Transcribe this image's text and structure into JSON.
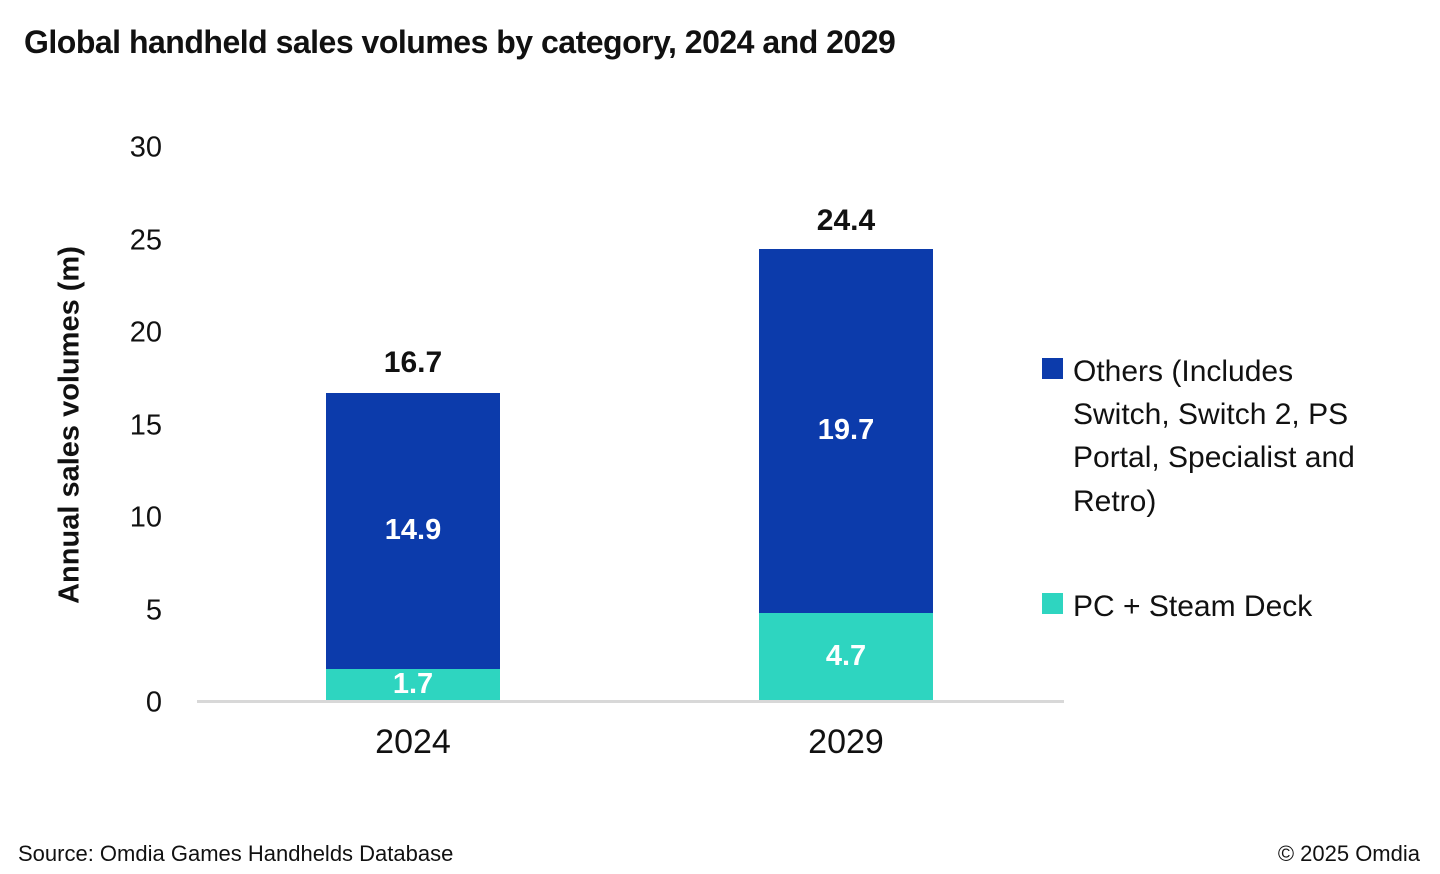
{
  "title": "Global handheld sales volumes by category, 2024 and 2029",
  "chart_data": {
    "type": "bar",
    "stacked": true,
    "categories": [
      "2024",
      "2029"
    ],
    "series": [
      {
        "name": "PC + Steam Deck",
        "color": "#2ed5c0",
        "values": [
          1.7,
          4.7
        ]
      },
      {
        "name": "Others (Includes Switch, Switch 2, PS Portal, Specialist and Retro)",
        "color": "#0c3bab",
        "values": [
          14.9,
          19.7
        ]
      }
    ],
    "totals": [
      16.7,
      24.4
    ],
    "title": "Global handheld sales volumes by category, 2024 and 2029",
    "xlabel": "",
    "ylabel": "Annual sales volumes (m)",
    "yticks": [
      0,
      5,
      10,
      15,
      20,
      25,
      30
    ],
    "ylim": [
      0,
      30
    ],
    "grid": false,
    "legend_position": "right",
    "value_label_color": "#ffffff",
    "axis_line_color": "#d8d8d8"
  },
  "footer": {
    "source": "Source: Omdia Games Handhelds Database",
    "copyright": "© 2025 Omdia"
  }
}
